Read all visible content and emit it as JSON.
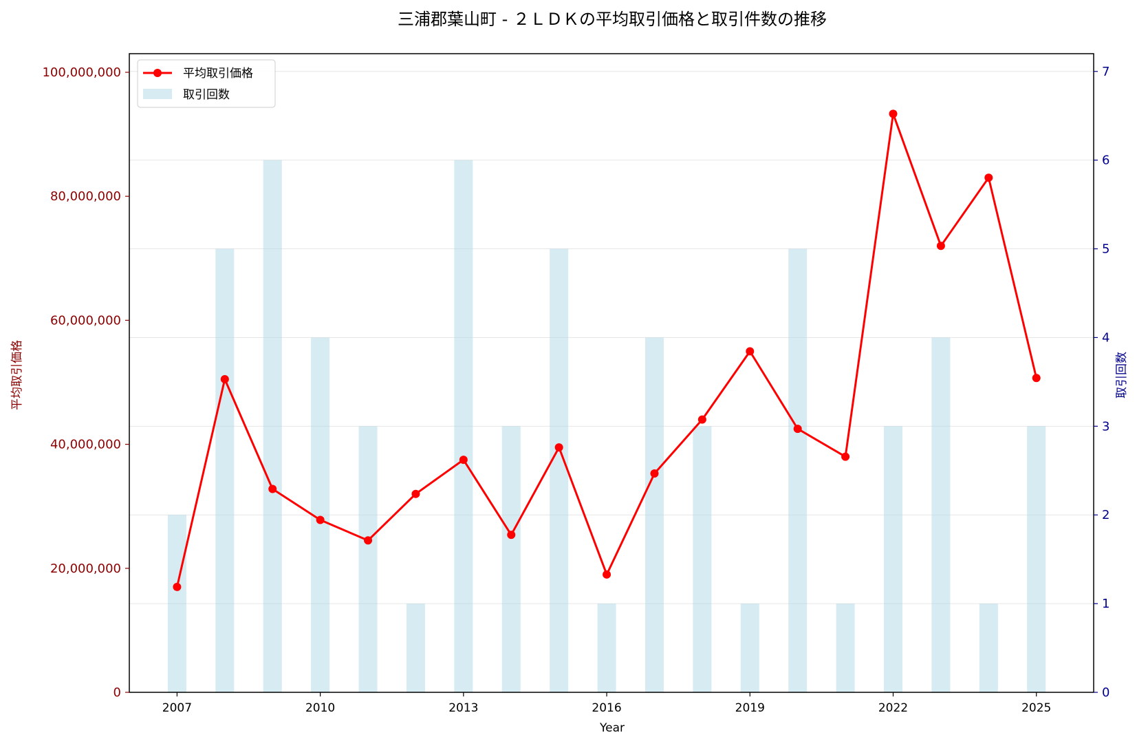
{
  "chart_data": {
    "type": "bar+line",
    "title": "三浦郡葉山町 - ２ＬＤＫの平均取引価格と取引件数の推移",
    "xlabel": "Year",
    "ylabel_left": "平均取引価格",
    "ylabel_right": "取引回数",
    "x": [
      2007,
      2008,
      2009,
      2010,
      2011,
      2012,
      2013,
      2014,
      2015,
      2016,
      2017,
      2018,
      2019,
      2020,
      2021,
      2022,
      2023,
      2024,
      2025
    ],
    "x_ticks": [
      "2007",
      "2010",
      "2013",
      "2016",
      "2019",
      "2022",
      "2025"
    ],
    "x_tick_values": [
      2007,
      2010,
      2013,
      2016,
      2019,
      2022,
      2025
    ],
    "xlim": [
      2006,
      2026.2
    ],
    "y_left_ticks": [
      "0",
      "20,000,000",
      "40,000,000",
      "60,000,000",
      "80,000,000",
      "100,000,000"
    ],
    "y_left_tick_values": [
      0,
      20000000,
      40000000,
      60000000,
      80000000,
      100000000
    ],
    "ylim_left": [
      0,
      103000000
    ],
    "y_right_ticks": [
      "0",
      "1",
      "2",
      "3",
      "4",
      "5",
      "6",
      "7"
    ],
    "y_right_tick_values": [
      0,
      1,
      2,
      3,
      4,
      5,
      6,
      7
    ],
    "ylim_right": [
      0,
      7.2
    ],
    "grid": "horizontal",
    "legend_position": "top-left",
    "series": [
      {
        "name": "平均取引価格",
        "kind": "line",
        "axis": "left",
        "color": "#ff0000",
        "values": [
          17000000,
          50500000,
          32800000,
          27800000,
          24500000,
          32000000,
          37500000,
          25400000,
          39500000,
          19000000,
          35300000,
          44000000,
          55000000,
          42500000,
          38000000,
          93300000,
          72000000,
          83000000,
          50700000
        ]
      },
      {
        "name": "取引回数",
        "kind": "bar",
        "axis": "right",
        "color": "#add8e6",
        "values": [
          2,
          5,
          6,
          4,
          3,
          1,
          6,
          3,
          5,
          1,
          4,
          3,
          1,
          5,
          1,
          3,
          4,
          1,
          3
        ]
      }
    ],
    "colors": {
      "left_axis": "#8b0000",
      "right_axis": "#00008b",
      "grid": "#e6e6e6",
      "axis_line": "#000000"
    }
  }
}
